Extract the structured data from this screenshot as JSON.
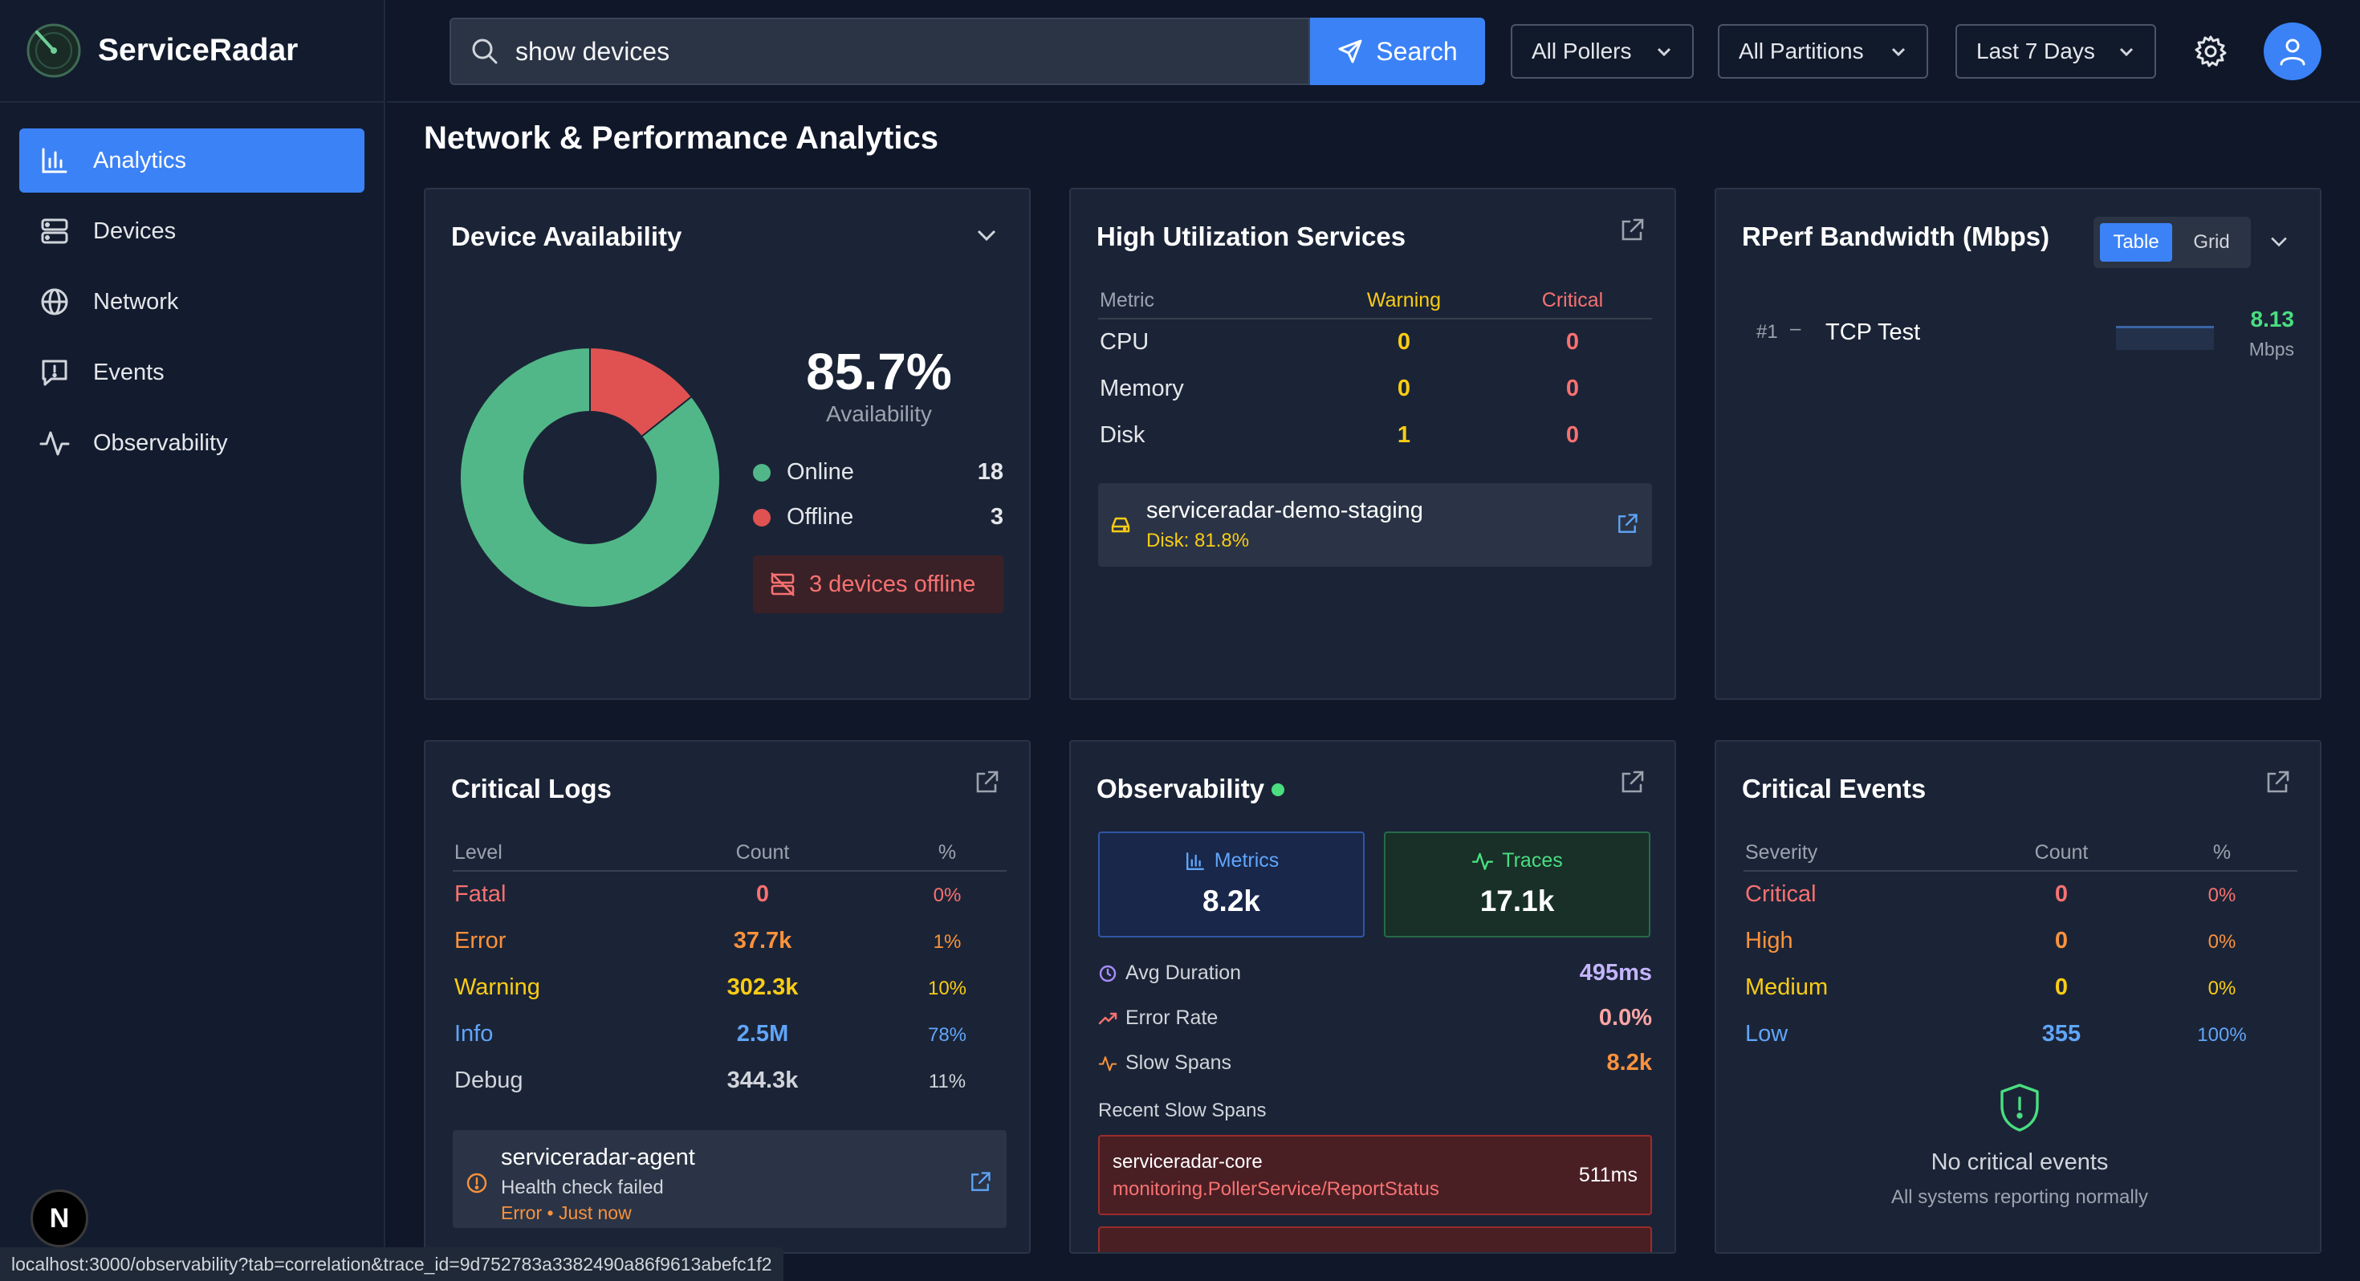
{
  "app": {
    "name": "ServiceRadar",
    "nav": [
      {
        "label": "Analytics",
        "icon": "bar-chart-icon",
        "active": true
      },
      {
        "label": "Devices",
        "icon": "server-icon"
      },
      {
        "label": "Network",
        "icon": "globe-icon"
      },
      {
        "label": "Events",
        "icon": "message-alert-icon"
      },
      {
        "label": "Observability",
        "icon": "activity-icon"
      }
    ],
    "badge": "N"
  },
  "header": {
    "search_value": "show devices",
    "search_label": "Search",
    "pollers": "All Pollers",
    "partitions": "All Partitions",
    "timerange": "Last 7 Days"
  },
  "page": {
    "title": "Network & Performance Analytics"
  },
  "availability": {
    "title": "Device Availability",
    "percent": "85.7%",
    "label": "Availability",
    "online_label": "Online",
    "online_count": "18",
    "offline_label": "Offline",
    "offline_count": "3",
    "online_value": 18,
    "offline_value": 3,
    "alert": "3 devices offline",
    "colors": {
      "online": "#52b788",
      "offline": "#e05252"
    }
  },
  "utilization": {
    "title": "High Utilization Services",
    "headers": {
      "metric": "Metric",
      "warning": "Warning",
      "critical": "Critical"
    },
    "rows": [
      {
        "metric": "CPU",
        "warning": "0",
        "critical": "0"
      },
      {
        "metric": "Memory",
        "warning": "0",
        "critical": "0"
      },
      {
        "metric": "Disk",
        "warning": "1",
        "critical": "0"
      }
    ],
    "alert_name": "serviceradar-demo-staging",
    "alert_detail": "Disk: 81.8%"
  },
  "rperf": {
    "title": "RPerf Bandwidth (Mbps)",
    "toggle_table": "Table",
    "toggle_grid": "Grid",
    "rank": "#1",
    "dash": "–",
    "test": "TCP Test",
    "value": "8.13",
    "unit": "Mbps"
  },
  "logs": {
    "title": "Critical Logs",
    "headers": {
      "level": "Level",
      "count": "Count",
      "pct": "%"
    },
    "rows": [
      {
        "level": "Fatal",
        "count": "0",
        "pct": "0%"
      },
      {
        "level": "Error",
        "count": "37.7k",
        "pct": "1%"
      },
      {
        "level": "Warning",
        "count": "302.3k",
        "pct": "10%"
      },
      {
        "level": "Info",
        "count": "2.5M",
        "pct": "78%"
      },
      {
        "level": "Debug",
        "count": "344.3k",
        "pct": "11%"
      }
    ],
    "recent_service": "serviceradar-agent",
    "recent_msg": "Health check failed",
    "recent_meta": "Error • Just now"
  },
  "observability": {
    "title": "Observability",
    "metrics_label": "Metrics",
    "metrics_value": "8.2k",
    "traces_label": "Traces",
    "traces_value": "17.1k",
    "avg_label": "Avg Duration",
    "avg_value": "495ms",
    "err_label": "Error Rate",
    "err_value": "0.0%",
    "slow_label": "Slow Spans",
    "slow_value": "8.2k",
    "recent_title": "Recent Slow Spans",
    "span_service": "serviceradar-core",
    "span_op": "monitoring.PollerService/ReportStatus",
    "span_duration": "511ms"
  },
  "events": {
    "title": "Critical Events",
    "headers": {
      "severity": "Severity",
      "count": "Count",
      "pct": "%"
    },
    "rows": [
      {
        "severity": "Critical",
        "count": "0",
        "pct": "0%"
      },
      {
        "severity": "High",
        "count": "0",
        "pct": "0%"
      },
      {
        "severity": "Medium",
        "count": "0",
        "pct": "0%"
      },
      {
        "severity": "Low",
        "count": "355",
        "pct": "100%"
      }
    ],
    "empty_title": "No critical events",
    "empty_sub": "All systems reporting normally"
  },
  "status_url": "localhost:3000/observability?tab=correlation&trace_id=9d752783a3382490a86f9613abefc1f2"
}
